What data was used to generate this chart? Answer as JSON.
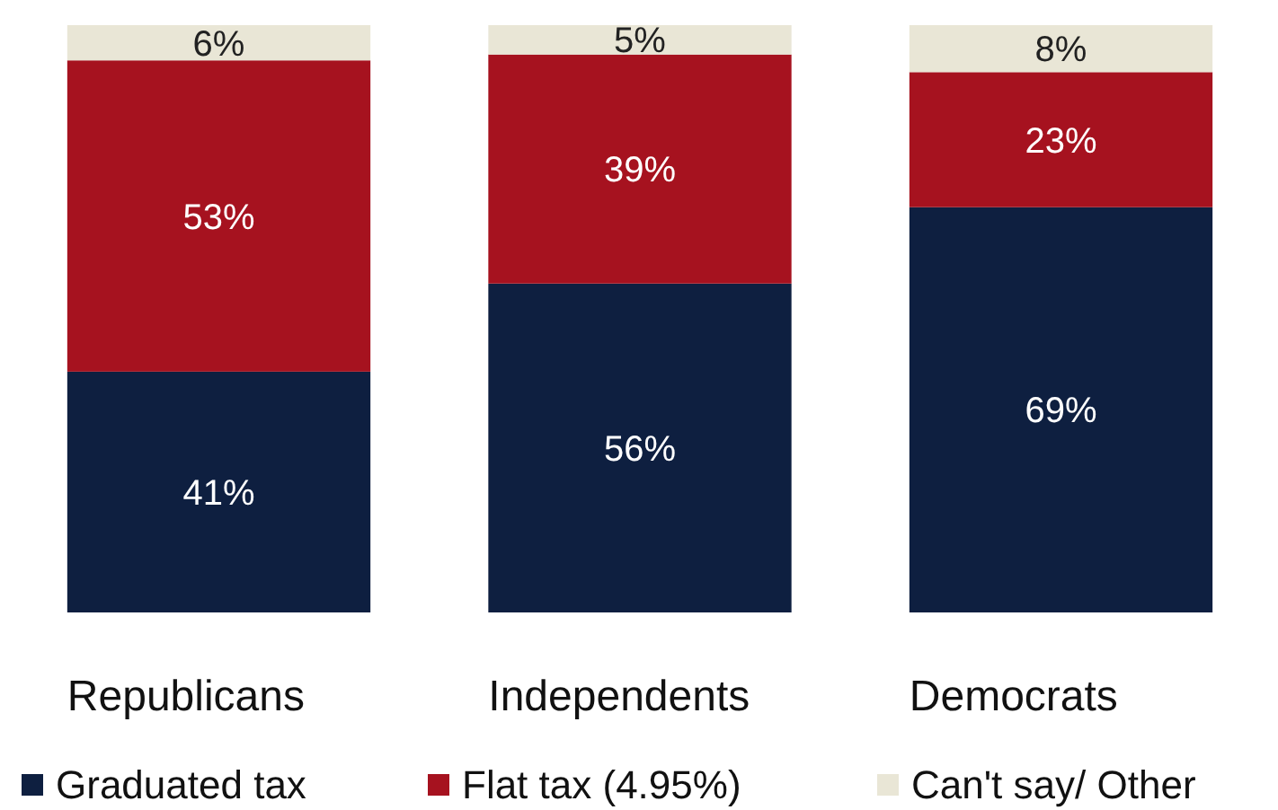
{
  "chart_data": {
    "type": "bar",
    "stacked": true,
    "legend": "bottom",
    "categories": [
      "Republicans",
      "Independents",
      "Democrats"
    ],
    "series": [
      {
        "name": "Graduated tax",
        "color": "#0e1f40",
        "values": [
          41,
          56,
          69
        ],
        "value_labels": [
          "41%",
          "56%",
          "69%"
        ]
      },
      {
        "name": "Flat tax (4.95%)",
        "color": "#a6121f",
        "values": [
          53,
          39,
          23
        ],
        "value_labels": [
          "53%",
          "39%",
          "23%"
        ]
      },
      {
        "name": "Can't say/ Other",
        "color": "#e9e6d6",
        "values": [
          6,
          5,
          8
        ],
        "value_labels": [
          "6%",
          "5%",
          "8%"
        ]
      }
    ]
  }
}
